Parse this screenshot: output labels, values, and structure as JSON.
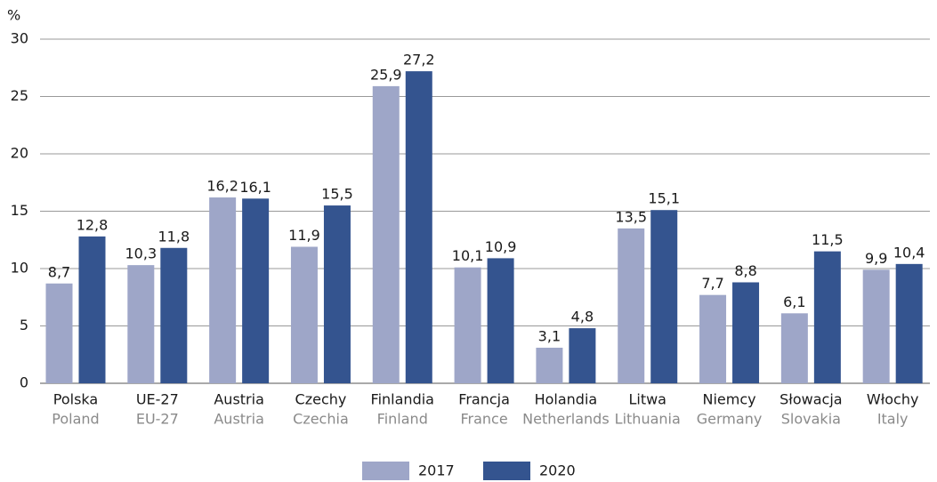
{
  "chart_data": {
    "type": "bar",
    "y_label": "%",
    "categories": [
      "Polska",
      "UE-27",
      "Austria",
      "Czechy",
      "Finlandia",
      "Francja",
      "Holandia",
      "Litwa",
      "Niemcy",
      "Słowacja",
      "Włochy"
    ],
    "categories_secondary": [
      "Poland",
      "EU-27",
      "Austria",
      "Czechia",
      "Finland",
      "France",
      "Netherlands",
      "Lithuania",
      "Germany",
      "Slovakia",
      "Italy"
    ],
    "series": [
      {
        "name": "2017",
        "color": "#9ea6c8",
        "values": [
          8.7,
          10.3,
          16.2,
          11.9,
          25.9,
          10.1,
          3.1,
          13.5,
          7.7,
          6.1,
          9.9
        ],
        "value_labels": [
          "8,7",
          "10,3",
          "16,2",
          "11,9",
          "25,9",
          "10,1",
          "3,1",
          "13,5",
          "7,7",
          "6,1",
          "9,9"
        ]
      },
      {
        "name": "2020",
        "color": "#34548f",
        "values": [
          12.8,
          11.8,
          16.1,
          15.5,
          27.2,
          10.9,
          4.8,
          15.1,
          8.8,
          11.5,
          10.4
        ],
        "value_labels": [
          "12,8",
          "11,8",
          "16,1",
          "15,5",
          "27,2",
          "10,9",
          "4,8",
          "15,1",
          "8,8",
          "11,5",
          "10,4"
        ]
      }
    ],
    "ylim": [
      0,
      30
    ],
    "yticks": [
      0,
      5,
      10,
      15,
      20,
      25,
      30
    ],
    "grid": true,
    "legend": "bottom"
  }
}
